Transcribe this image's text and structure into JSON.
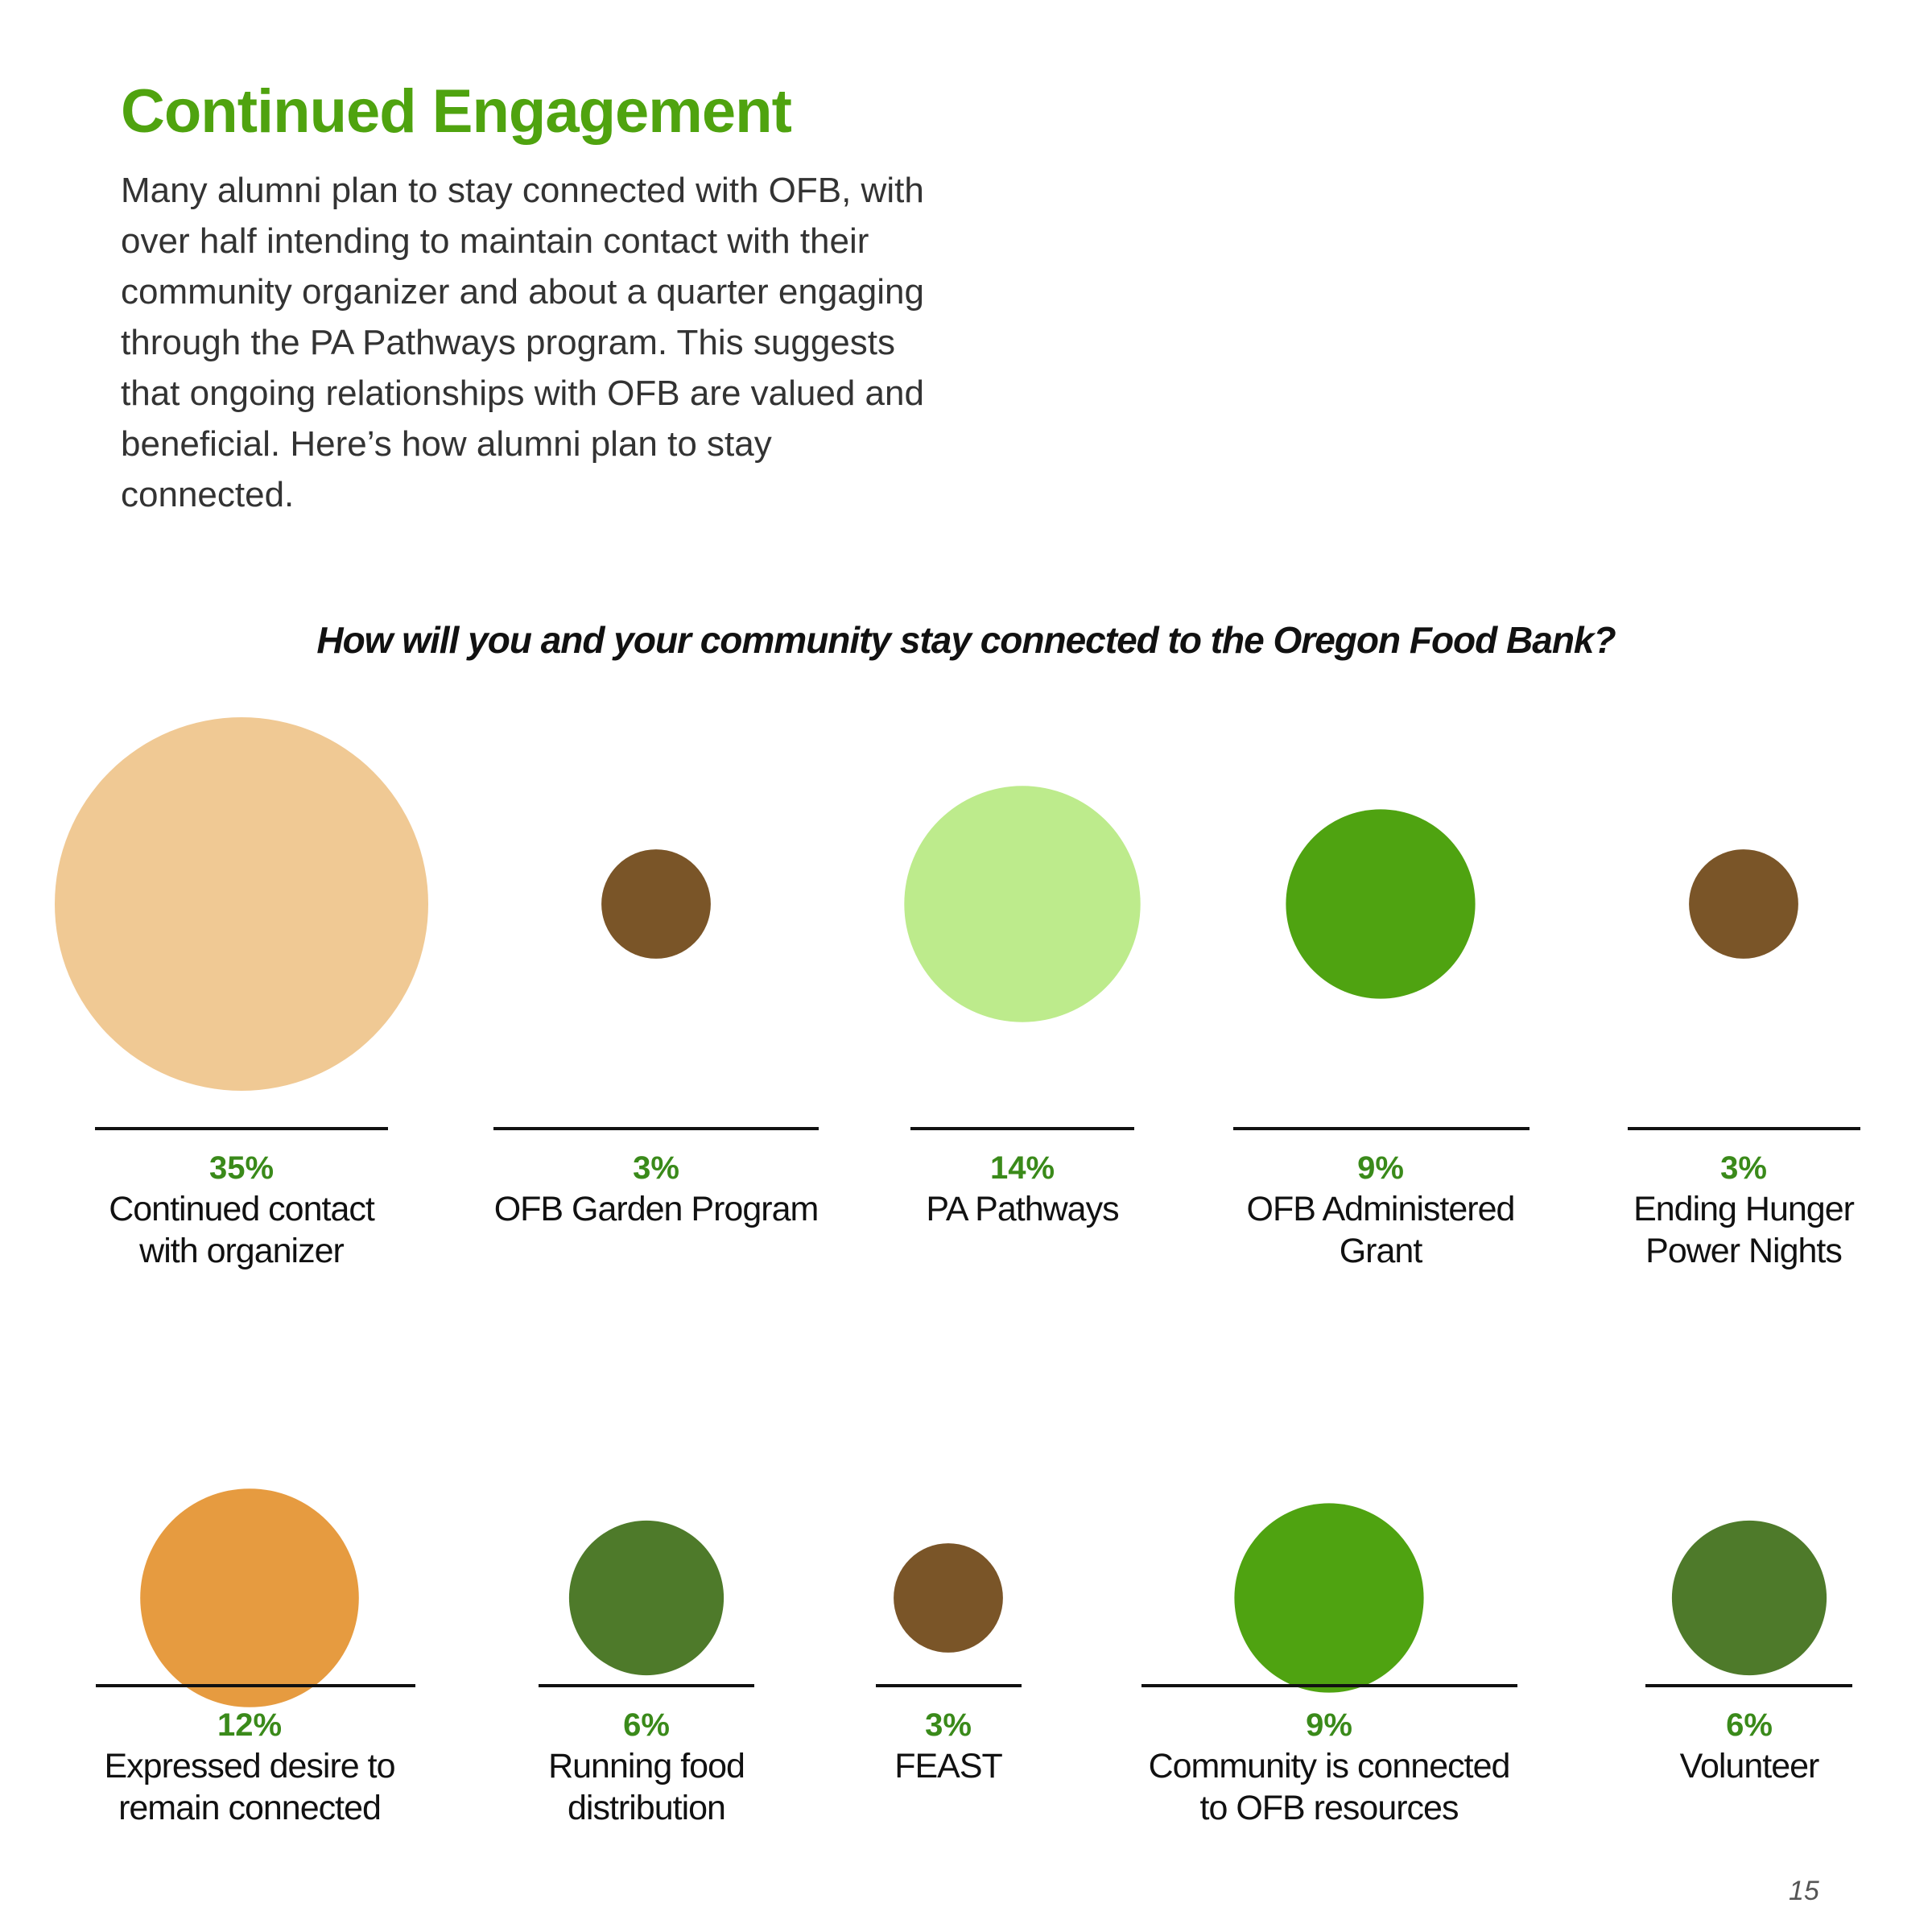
{
  "page": {
    "title": "Continued Engagement",
    "intro": "Many alumni plan to stay connected with OFB, with over half intending to maintain contact with their community organizer and about a quarter engaging through the PA Pathways program. This suggests that ongoing relationships with OFB are valued and beneficial. Here’s how alumni plan to stay connected.",
    "page_number": "15"
  },
  "colors": {
    "title_green": "#4fa30f",
    "value_green": "#3a8a1a",
    "peach": "#f0c994",
    "orange": "#e69b40",
    "light_green": "#bdeb8c",
    "bright_green": "#4fa311",
    "olive_green": "#4e7a2a",
    "brown": "#7a5528"
  },
  "chart_data": {
    "type": "bubble",
    "title": "How will you and your community stay connected to the Oregon Food Bank?",
    "unit": "%",
    "rows": [
      {
        "items": [
          {
            "value": 35,
            "label_lines": [
              "Continued contact",
              "with organizer"
            ],
            "color": "#f0c994"
          },
          {
            "value": 3,
            "label_lines": [
              "OFB Garden Program"
            ],
            "color": "#7a5528"
          },
          {
            "value": 14,
            "label_lines": [
              "PA Pathways"
            ],
            "color": "#bdeb8c"
          },
          {
            "value": 9,
            "label_lines": [
              "OFB Administered",
              "Grant"
            ],
            "color": "#4fa311"
          },
          {
            "value": 3,
            "label_lines": [
              "Ending Hunger",
              "Power Nights"
            ],
            "color": "#7a5528"
          }
        ]
      },
      {
        "items": [
          {
            "value": 12,
            "label_lines": [
              "Expressed desire to",
              "remain connected"
            ],
            "color": "#e69b40"
          },
          {
            "value": 6,
            "label_lines": [
              "Running food",
              "distribution"
            ],
            "color": "#4e7a2a"
          },
          {
            "value": 3,
            "label_lines": [
              "FEAST"
            ],
            "color": "#7a5528"
          },
          {
            "value": 9,
            "label_lines": [
              "Community is connected",
              "to OFB resources"
            ],
            "color": "#4fa311"
          },
          {
            "value": 6,
            "label_lines": [
              "Volunteer"
            ],
            "color": "#4e7a2a"
          }
        ]
      }
    ]
  }
}
